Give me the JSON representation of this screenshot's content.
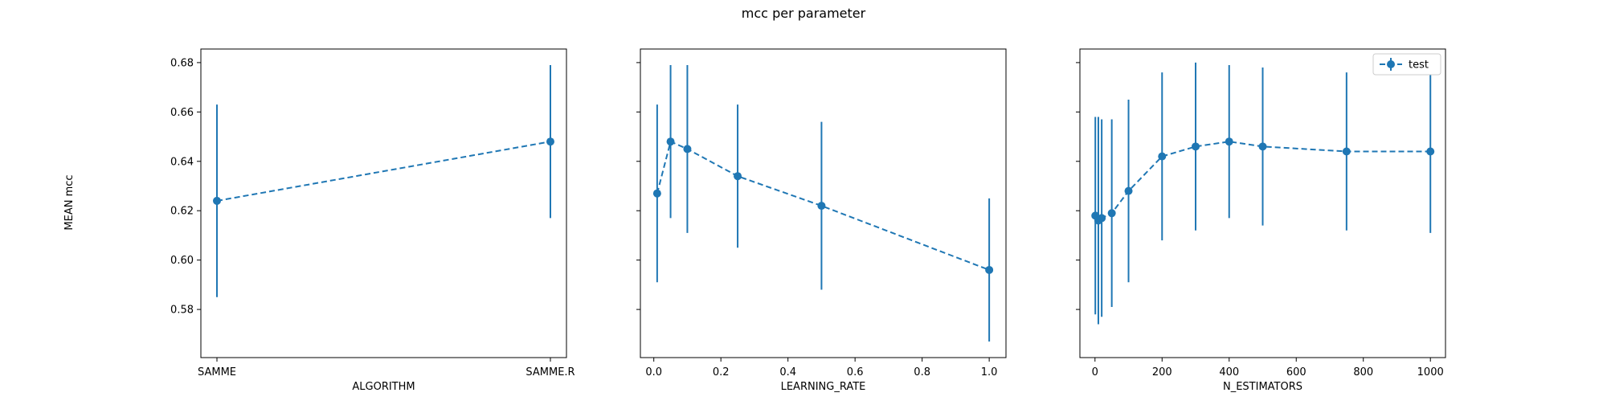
{
  "figure": {
    "title": "mcc per parameter",
    "ylabel": "MEAN mcc"
  },
  "colors": {
    "series": "#1f77b4",
    "axes": "#000000",
    "background": "#ffffff"
  },
  "chart_data": [
    {
      "type": "line",
      "xscale": "categorical",
      "xlabel": "ALGORITHM",
      "categories": [
        "SAMME",
        "SAMME.R"
      ],
      "ylim": [
        0.5605,
        0.6855
      ],
      "yticks": [
        0.58,
        0.6,
        0.62,
        0.64,
        0.66,
        0.68
      ],
      "ytick_labels": [
        "0.58",
        "0.60",
        "0.62",
        "0.64",
        "0.66",
        "0.68"
      ],
      "series": [
        {
          "name": "test",
          "x": [
            "SAMME",
            "SAMME.R"
          ],
          "y": [
            0.624,
            0.648
          ],
          "yerr": [
            0.039,
            0.031
          ]
        }
      ],
      "grid": false,
      "legend": null
    },
    {
      "type": "line",
      "xscale": "linear",
      "xlabel": "LEARNING_RATE",
      "xlim": [
        -0.04,
        1.05
      ],
      "xticks": [
        0.0,
        0.2,
        0.4,
        0.6,
        0.8,
        1.0
      ],
      "xtick_labels": [
        "0.0",
        "0.2",
        "0.4",
        "0.6",
        "0.8",
        "1.0"
      ],
      "ylim": [
        0.5605,
        0.6855
      ],
      "series": [
        {
          "name": "test",
          "x": [
            0.01,
            0.05,
            0.1,
            0.25,
            0.5,
            1.0
          ],
          "y": [
            0.627,
            0.648,
            0.645,
            0.634,
            0.622,
            0.596
          ],
          "yerr": [
            0.036,
            0.031,
            0.034,
            0.029,
            0.034,
            0.029
          ]
        }
      ],
      "grid": false,
      "legend": null
    },
    {
      "type": "line",
      "xscale": "linear",
      "xlabel": "N_ESTIMATORS",
      "xlim": [
        -45,
        1045
      ],
      "xticks": [
        0,
        200,
        400,
        600,
        800,
        1000
      ],
      "xtick_labels": [
        "0",
        "200",
        "400",
        "600",
        "800",
        "1000"
      ],
      "ylim": [
        0.5605,
        0.6855
      ],
      "series": [
        {
          "name": "test",
          "x": [
            1,
            10,
            20,
            50,
            100,
            200,
            300,
            400,
            500,
            750,
            1000
          ],
          "y": [
            0.618,
            0.616,
            0.617,
            0.619,
            0.628,
            0.642,
            0.646,
            0.648,
            0.646,
            0.644,
            0.644
          ],
          "yerr": [
            0.04,
            0.042,
            0.04,
            0.038,
            0.037,
            0.034,
            0.034,
            0.031,
            0.032,
            0.032,
            0.033
          ]
        }
      ],
      "grid": false,
      "legend": {
        "entries": [
          "test"
        ],
        "location": "upper right"
      }
    }
  ]
}
